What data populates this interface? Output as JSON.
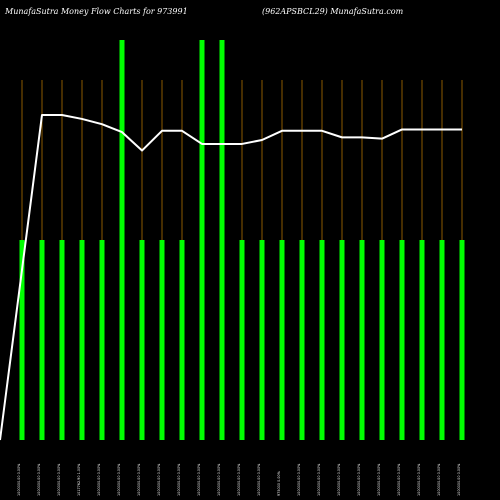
{
  "header": {
    "left": "MunafaSutra  Money Flow  Charts for 973991",
    "right": "(962APSBCL29) MunafaSutra.com"
  },
  "chart_data": {
    "type": "bar",
    "title": "MunafaSutra  Money Flow  Charts for 973991",
    "subtitle": "(962APSBCL29) MunafaSutra.com",
    "categories": [
      "1000000.00 0.00%",
      "1000000.00 0.00%",
      "1000000.00 0.00%",
      "1017762.90 1.00%",
      "1000000.00 0.00%",
      "1000000.00 0.00%",
      "1000000.00 0.00%",
      "1000000.00 0.00%",
      "1000000.00 0.00%",
      "1000000.00 0.00%",
      "1000000.00 0.00%",
      "1000000.00 0.00%",
      "1000000.00 0.00%",
      "975000 0.00%",
      "1000000.00 0.00%",
      "1000000.00 0.00%",
      "1000000.00 0.00%",
      "1000000.00 0.00%",
      "1000000.00 0.00%",
      "1000000.00 0.00%",
      "1000000.00 0.00%",
      "1000000.00 0.00%",
      "1000000.00 0.00%"
    ],
    "series": [
      {
        "type": "bar",
        "color": "#00ff00",
        "values": [
          1,
          1,
          1,
          1,
          1,
          2,
          1,
          1,
          1,
          2,
          2,
          1,
          1,
          1,
          1,
          1,
          1,
          1,
          1,
          1,
          1,
          1,
          1
        ]
      },
      {
        "type": "line",
        "color": "#ffffff",
        "values": [
          0,
          1.235,
          1.235,
          1.22,
          1.2,
          1.17,
          1.1,
          1.175,
          1.175,
          1.125,
          1.125,
          1.125,
          1.14,
          1.175,
          1.175,
          1.175,
          1.15,
          1.15,
          1.145,
          1.18,
          1.18,
          1.18,
          1.18
        ]
      }
    ],
    "ylim": [
      0,
      2
    ],
    "grid": true,
    "grid_color": "#8b5a00",
    "background": "#000000"
  }
}
